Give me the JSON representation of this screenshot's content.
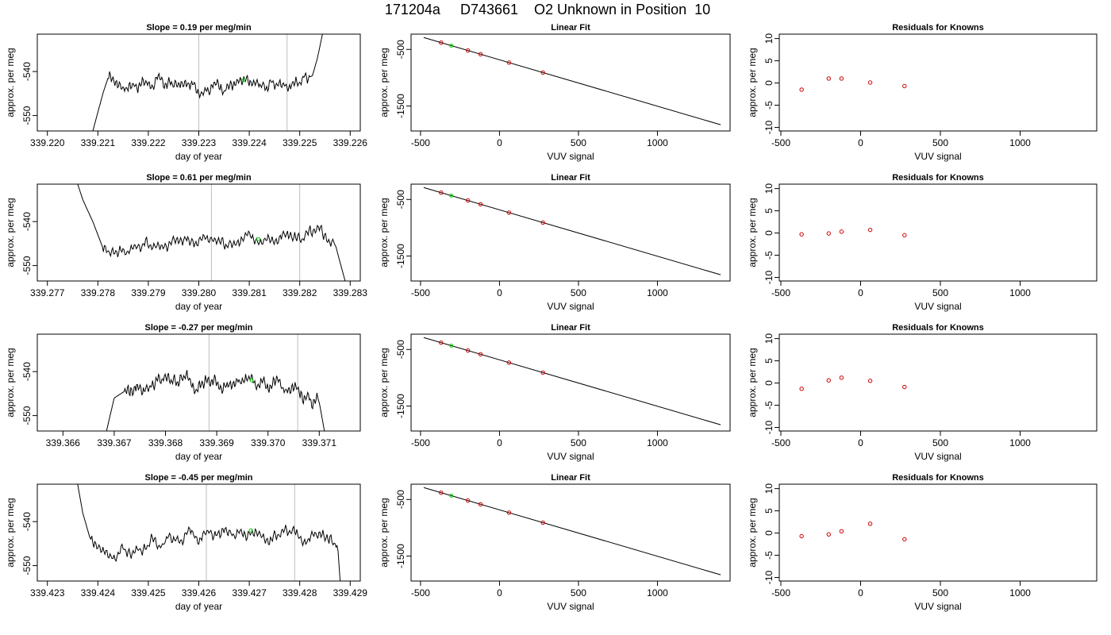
{
  "main_title": "171204a     D743661    O2 Unknown in Position  10",
  "colors": {
    "trace": "#000000",
    "grid": "#bebebe",
    "marker": "#00cc00",
    "residual": "#cc0000"
  },
  "chart_data": [
    {
      "type": "line",
      "panel": "time",
      "row": 0,
      "title": "Slope =  0.19  per meg/min",
      "xlabel": "day of year",
      "ylabel": "approx. per meg",
      "xlim": [
        339.2198,
        339.2262
      ],
      "ylim": [
        -553.5,
        -531.5
      ],
      "xticks": [
        "339.220",
        "339.221",
        "339.222",
        "339.223",
        "339.224",
        "339.225",
        "339.226"
      ],
      "yticks": [
        "-550",
        "-540"
      ],
      "vlines": [
        339.223,
        339.22475
      ],
      "anchors": [
        [
          339.2209,
          -553.5
        ],
        [
          339.2211,
          -545
        ],
        [
          339.2212,
          -541.5
        ],
        [
          339.2215,
          -543
        ],
        [
          339.222,
          -542.5
        ],
        [
          339.2225,
          -543
        ],
        [
          339.223,
          -543.5
        ],
        [
          339.2235,
          -543
        ],
        [
          339.224,
          -543
        ],
        [
          339.2245,
          -543
        ],
        [
          339.225,
          -542
        ],
        [
          339.22525,
          -541
        ],
        [
          339.22535,
          -537
        ],
        [
          339.22545,
          -531.5
        ]
      ],
      "noise_start": 339.2212,
      "noise_end": 339.2252,
      "noise_amp": 1.6,
      "marker": [
        339.22388,
        -542
      ]
    },
    {
      "type": "line",
      "panel": "time",
      "row": 1,
      "title": "Slope =  0.61  per meg/min",
      "xlabel": "day of year",
      "ylabel": "approx. per meg",
      "xlim": [
        339.2768,
        339.2832
      ],
      "ylim": [
        -553.5,
        -531.5
      ],
      "xticks": [
        "339.277",
        "339.278",
        "339.279",
        "339.280",
        "339.281",
        "339.282",
        "339.283"
      ],
      "yticks": [
        "-550",
        "-540"
      ],
      "vlines": [
        339.28025,
        339.282
      ],
      "anchors": [
        [
          339.2776,
          -531.5
        ],
        [
          339.2777,
          -535
        ],
        [
          339.2779,
          -540
        ],
        [
          339.2781,
          -546
        ],
        [
          339.2785,
          -546.5
        ],
        [
          339.279,
          -545
        ],
        [
          339.2795,
          -545
        ],
        [
          339.28,
          -544
        ],
        [
          339.2805,
          -544.5
        ],
        [
          339.281,
          -544
        ],
        [
          339.2815,
          -544
        ],
        [
          339.282,
          -543.5
        ],
        [
          339.2825,
          -543
        ],
        [
          339.2827,
          -545
        ],
        [
          339.2829,
          -553.5
        ]
      ],
      "noise_start": 339.2781,
      "noise_end": 339.2827,
      "noise_amp": 1.7,
      "marker": [
        339.28118,
        -544
      ]
    },
    {
      "type": "line",
      "panel": "time",
      "row": 2,
      "title": "Slope =  -0.27  per meg/min",
      "xlabel": "day of year",
      "ylabel": "approx. per meg",
      "xlim": [
        339.3655,
        339.3718
      ],
      "ylim": [
        -553.5,
        -531.5
      ],
      "xticks": [
        "339.366",
        "339.367",
        "339.368",
        "339.369",
        "339.370",
        "339.371"
      ],
      "yticks": [
        "-550",
        "-540"
      ],
      "vlines": [
        339.36885,
        339.37058
      ],
      "anchors": [
        [
          339.36685,
          -553.5
        ],
        [
          339.367,
          -546
        ],
        [
          339.3672,
          -544.5
        ],
        [
          339.3677,
          -543
        ],
        [
          339.3682,
          -541.5
        ],
        [
          339.3688,
          -542.5
        ],
        [
          339.3693,
          -543
        ],
        [
          339.3697,
          -541.5
        ],
        [
          339.3702,
          -544
        ],
        [
          339.3707,
          -545
        ],
        [
          339.371,
          -547
        ],
        [
          339.3711,
          -553.5
        ]
      ],
      "noise_start": 339.3672,
      "noise_end": 339.371,
      "noise_amp": 1.8,
      "marker": [
        339.36968,
        -542
      ]
    },
    {
      "type": "line",
      "panel": "time",
      "row": 3,
      "title": "Slope =  -0.45  per meg/min",
      "xlabel": "day of year",
      "ylabel": "approx. per meg",
      "xlim": [
        339.4228,
        339.4292
      ],
      "ylim": [
        -553.5,
        -531.5
      ],
      "xticks": [
        "339.423",
        "339.424",
        "339.425",
        "339.426",
        "339.427",
        "339.428",
        "339.429"
      ],
      "yticks": [
        "-550",
        "-540"
      ],
      "vlines": [
        339.42615,
        339.4279
      ],
      "anchors": [
        [
          339.4236,
          -531.5
        ],
        [
          339.4237,
          -538
        ],
        [
          339.42385,
          -544
        ],
        [
          339.4242,
          -547.5
        ],
        [
          339.4246,
          -547
        ],
        [
          339.425,
          -545
        ],
        [
          339.4255,
          -543.5
        ],
        [
          339.426,
          -543
        ],
        [
          339.4265,
          -543
        ],
        [
          339.427,
          -543
        ],
        [
          339.4275,
          -543
        ],
        [
          339.428,
          -543.5
        ],
        [
          339.4286,
          -543.5
        ],
        [
          339.42875,
          -545
        ],
        [
          339.4288,
          -553.5
        ]
      ],
      "noise_start": 339.42385,
      "noise_end": 339.42875,
      "noise_amp": 1.6,
      "marker": [
        339.42703,
        -542
      ]
    },
    {
      "type": "line",
      "panel": "fit",
      "row": 0,
      "title": "Linear Fit",
      "xlabel": "VUV signal",
      "ylabel": "approx. per meg",
      "xlim": [
        -560,
        1460
      ],
      "ylim": [
        -1940,
        -230
      ],
      "xticks": [
        -500,
        0,
        500,
        1000
      ],
      "yticks": [
        -500,
        -1500
      ],
      "line": {
        "x": [
          -480,
          1400
        ],
        "y": [
          -290,
          -1830
        ]
      },
      "points": {
        "x": [
          -370,
          -200,
          -120,
          60,
          275
        ],
        "y": [
          -380,
          -519,
          -585,
          -733,
          -909
        ]
      },
      "marker": [
        -305,
        -433
      ]
    },
    {
      "type": "line",
      "panel": "fit",
      "row": 1,
      "title": "Linear Fit",
      "xlabel": "VUV signal",
      "ylabel": "approx. per meg",
      "xlim": [
        -560,
        1460
      ],
      "ylim": [
        -1940,
        -230
      ],
      "xticks": [
        -500,
        0,
        500,
        1000
      ],
      "yticks": [
        -500,
        -1500
      ],
      "line": {
        "x": [
          -480,
          1400
        ],
        "y": [
          -290,
          -1830
        ]
      },
      "points": {
        "x": [
          -370,
          -200,
          -120,
          60,
          275
        ],
        "y": [
          -380,
          -519,
          -585,
          -733,
          -909
        ]
      },
      "marker": [
        -305,
        -433
      ]
    },
    {
      "type": "line",
      "panel": "fit",
      "row": 2,
      "title": "Linear Fit",
      "xlabel": "VUV signal",
      "ylabel": "approx. per meg",
      "xlim": [
        -560,
        1460
      ],
      "ylim": [
        -1940,
        -230
      ],
      "xticks": [
        -500,
        0,
        500,
        1000
      ],
      "yticks": [
        -500,
        -1500
      ],
      "line": {
        "x": [
          -480,
          1400
        ],
        "y": [
          -290,
          -1830
        ]
      },
      "points": {
        "x": [
          -370,
          -200,
          -120,
          60,
          275
        ],
        "y": [
          -380,
          -519,
          -585,
          -733,
          -909
        ]
      },
      "marker": [
        -305,
        -433
      ]
    },
    {
      "type": "line",
      "panel": "fit",
      "row": 3,
      "title": "Linear Fit",
      "xlabel": "VUV signal",
      "ylabel": "approx. per meg",
      "xlim": [
        -560,
        1460
      ],
      "ylim": [
        -1940,
        -230
      ],
      "xticks": [
        -500,
        0,
        500,
        1000
      ],
      "yticks": [
        -500,
        -1500
      ],
      "line": {
        "x": [
          -480,
          1400
        ],
        "y": [
          -290,
          -1830
        ]
      },
      "points": {
        "x": [
          -370,
          -200,
          -120,
          60,
          275
        ],
        "y": [
          -380,
          -519,
          -585,
          -733,
          -909
        ]
      },
      "marker": [
        -305,
        -433
      ]
    },
    {
      "type": "scatter",
      "panel": "resid",
      "row": 0,
      "title": "Residuals for Knowns",
      "xlabel": "VUV signal",
      "ylabel": "approx. per meg",
      "xlim": [
        -510,
        1480
      ],
      "ylim": [
        -10.8,
        11
      ],
      "xticks": [
        -500,
        0,
        500,
        1000
      ],
      "yticks": [
        -10,
        -5,
        0,
        5,
        10
      ],
      "points": {
        "x": [
          -370,
          -200,
          -120,
          60,
          275
        ],
        "y": [
          -1.5,
          1.0,
          1.0,
          0.1,
          -0.7
        ]
      }
    },
    {
      "type": "scatter",
      "panel": "resid",
      "row": 1,
      "title": "Residuals for Knowns",
      "xlabel": "VUV signal",
      "ylabel": "approx. per meg",
      "xlim": [
        -510,
        1480
      ],
      "ylim": [
        -10.8,
        11
      ],
      "xticks": [
        -500,
        0,
        500,
        1000
      ],
      "yticks": [
        -10,
        -5,
        0,
        5,
        10
      ],
      "points": {
        "x": [
          -370,
          -200,
          -120,
          60,
          275
        ],
        "y": [
          -0.3,
          -0.1,
          0.3,
          0.7,
          -0.5
        ]
      }
    },
    {
      "type": "scatter",
      "panel": "resid",
      "row": 2,
      "title": "Residuals for Knowns",
      "xlabel": "VUV signal",
      "ylabel": "approx. per meg",
      "xlim": [
        -510,
        1480
      ],
      "ylim": [
        -10.8,
        11
      ],
      "xticks": [
        -500,
        0,
        500,
        1000
      ],
      "yticks": [
        -10,
        -5,
        0,
        5,
        10
      ],
      "points": {
        "x": [
          -370,
          -200,
          -120,
          60,
          275
        ],
        "y": [
          -1.3,
          0.6,
          1.2,
          0.5,
          -0.9
        ]
      }
    },
    {
      "type": "scatter",
      "panel": "resid",
      "row": 3,
      "title": "Residuals for Knowns",
      "xlabel": "VUV signal",
      "ylabel": "approx. per meg",
      "xlim": [
        -510,
        1480
      ],
      "ylim": [
        -10.8,
        11
      ],
      "xticks": [
        -500,
        0,
        500,
        1000
      ],
      "yticks": [
        -10,
        -5,
        0,
        5,
        10
      ],
      "points": {
        "x": [
          -370,
          -200,
          -120,
          60,
          275
        ],
        "y": [
          -0.7,
          -0.3,
          0.4,
          2.1,
          -1.4
        ]
      }
    }
  ]
}
